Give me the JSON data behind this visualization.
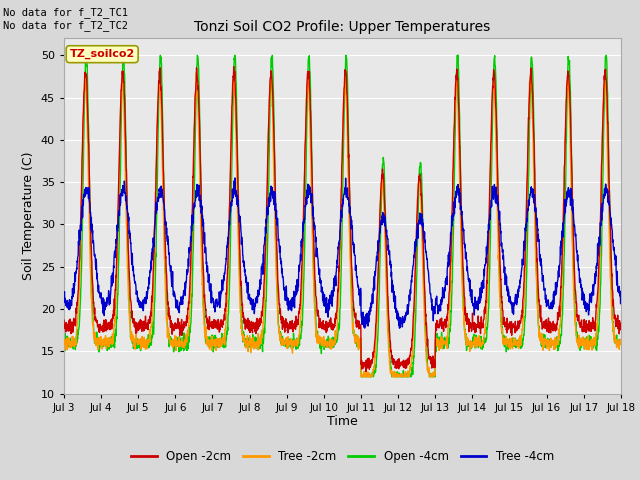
{
  "title": "Tonzi Soil CO2 Profile: Upper Temperatures",
  "ylabel": "Soil Temperature (C)",
  "xlabel": "Time",
  "ylim": [
    10,
    52
  ],
  "yticks": [
    10,
    15,
    20,
    25,
    30,
    35,
    40,
    45,
    50
  ],
  "annotation_text": "No data for f_T2_TC1\nNo data for f_T2_TC2",
  "box_label": "TZ_soilco2",
  "xtick_labels": [
    "Jul 3",
    "Jul 4",
    "Jul 5",
    "Jul 6",
    "Jul 7",
    "Jul 8",
    "Jul 9",
    "Jul 10",
    "Jul 11",
    "Jul 12",
    "Jul 13",
    "Jul 14",
    "Jul 15",
    "Jul 16",
    "Jul 17",
    "Jul 18"
  ],
  "colors": {
    "open_2cm": "#cc0000",
    "tree_2cm": "#ff9900",
    "open_4cm": "#00cc00",
    "tree_4cm": "#0000cc"
  },
  "legend_labels": [
    "Open -2cm",
    "Tree -2cm",
    "Open -4cm",
    "Tree -4cm"
  ],
  "fig_facecolor": "#d8d8d8",
  "ax_facecolor": "#e8e8e8",
  "grid_color": "#ffffff"
}
